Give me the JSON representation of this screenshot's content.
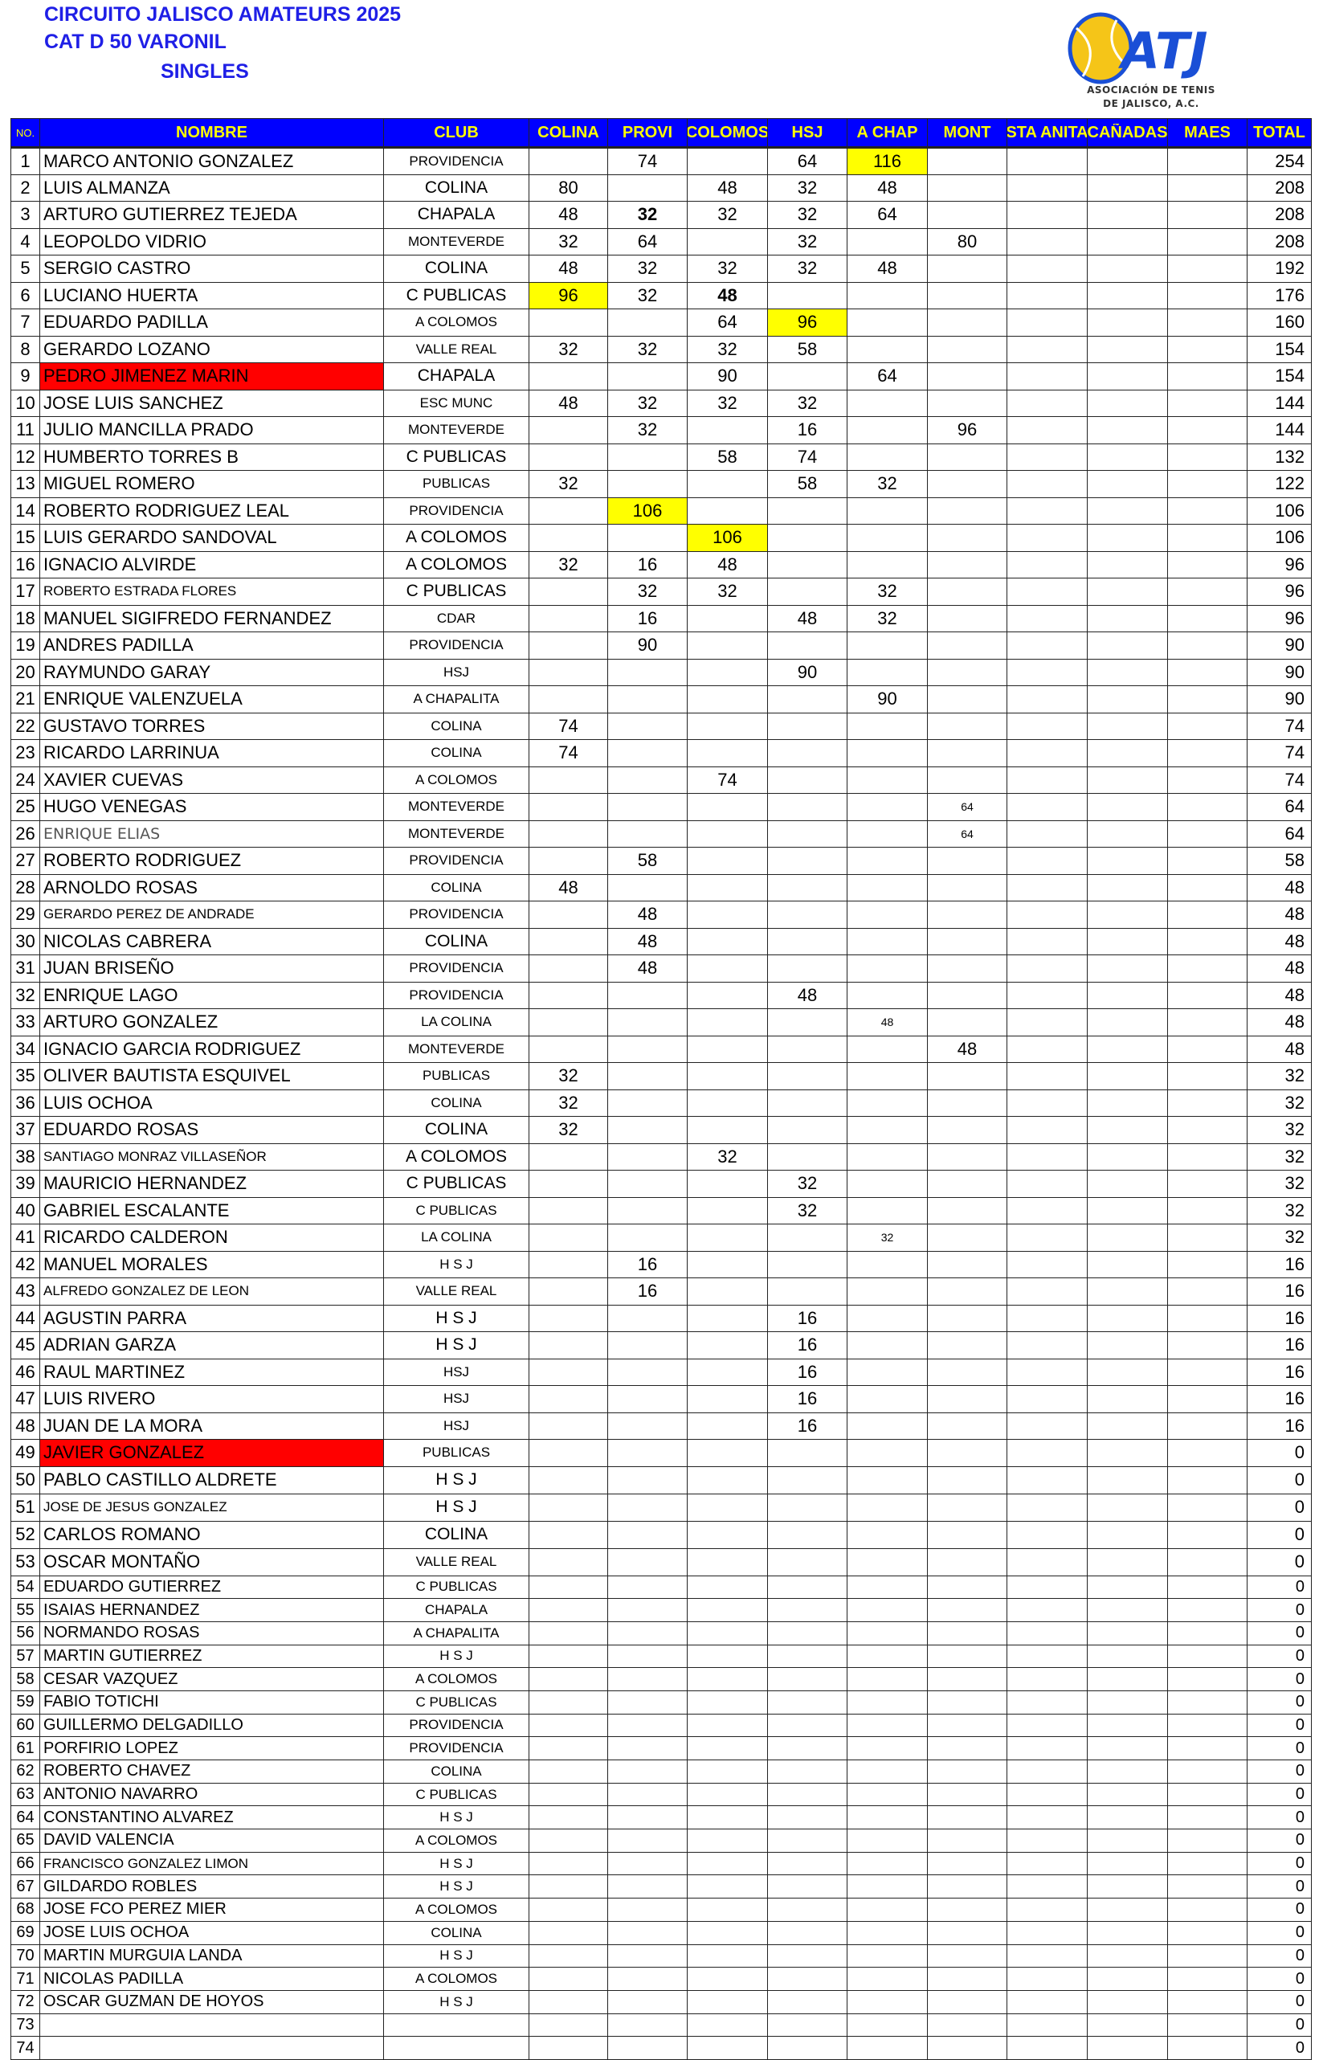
{
  "header": {
    "title_line1": "CIRCUITO JALISCO AMATEURS 2025",
    "title_line2": "CAT  D  50 VARONIL",
    "title_line3": "SINGLES"
  },
  "logo": {
    "text": "ATJ",
    "caption_line1": "ASOCIACIÓN DE TENIS",
    "caption_line2": "DE JALISCO, A.C.",
    "ball_color": "#f5c518",
    "brand_color": "#1a4fd6"
  },
  "colors": {
    "header_bg": "#0000ff",
    "header_text": "#ffff00",
    "highlight": "#ffff00",
    "flag": "#ff0000"
  },
  "columns": [
    "NO.",
    "NOMBRE",
    "CLUB",
    "COLINA",
    "PROVI",
    "COLOMOS",
    "HSJ",
    "A CHAP",
    "MONT",
    "STA ANITA",
    "CAÑADAS",
    "MAES",
    "TOTAL"
  ],
  "rows": [
    [
      "1",
      "MARCO ANTONIO GONZALEZ",
      "PROVIDENCIA",
      "",
      "74",
      "",
      "64",
      "116",
      "",
      "",
      "",
      "",
      "254"
    ],
    [
      "2",
      "LUIS ALMANZA",
      "COLINA",
      "80",
      "",
      "48",
      "32",
      "48",
      "",
      "",
      "",
      "",
      "208"
    ],
    [
      "3",
      "ARTURO GUTIERREZ TEJEDA",
      "CHAPALA",
      "48",
      "32",
      "32",
      "32",
      "64",
      "",
      "",
      "",
      "",
      "208"
    ],
    [
      "4",
      "LEOPOLDO VIDRIO",
      "MONTEVERDE",
      "32",
      "64",
      "",
      "32",
      "",
      "80",
      "",
      "",
      "",
      "208"
    ],
    [
      "5",
      "SERGIO CASTRO",
      "COLINA",
      "48",
      "32",
      "32",
      "32",
      "48",
      "",
      "",
      "",
      "",
      "192"
    ],
    [
      "6",
      "LUCIANO HUERTA",
      "C PUBLICAS",
      "96",
      "32",
      "48",
      "",
      "",
      "",
      "",
      "",
      "",
      "176"
    ],
    [
      "7",
      "EDUARDO PADILLA",
      "A COLOMOS",
      "",
      "",
      "64",
      "96",
      "",
      "",
      "",
      "",
      "",
      "160"
    ],
    [
      "8",
      "GERARDO LOZANO",
      "VALLE REAL",
      "32",
      "32",
      "32",
      "58",
      "",
      "",
      "",
      "",
      "",
      "154"
    ],
    [
      "9",
      "PEDRO JIMENEZ MARIN",
      "CHAPALA",
      "",
      "",
      "90",
      "",
      "64",
      "",
      "",
      "",
      "",
      "154"
    ],
    [
      "10",
      "JOSE LUIS SANCHEZ",
      "ESC MUNC",
      "48",
      "32",
      "32",
      "32",
      "",
      "",
      "",
      "",
      "",
      "144"
    ],
    [
      "11",
      "JULIO MANCILLA PRADO",
      "MONTEVERDE",
      "",
      "32",
      "",
      "16",
      "",
      "96",
      "",
      "",
      "",
      "144"
    ],
    [
      "12",
      "HUMBERTO TORRES B",
      "C PUBLICAS",
      "",
      "",
      "58",
      "74",
      "",
      "",
      "",
      "",
      "",
      "132"
    ],
    [
      "13",
      "MIGUEL ROMERO",
      "PUBLICAS",
      "32",
      "",
      "",
      "58",
      "32",
      "",
      "",
      "",
      "",
      "122"
    ],
    [
      "14",
      "ROBERTO RODRIGUEZ LEAL",
      "PROVIDENCIA",
      "",
      "106",
      "",
      "",
      "",
      "",
      "",
      "",
      "",
      "106"
    ],
    [
      "15",
      "LUIS GERARDO SANDOVAL",
      "A COLOMOS",
      "",
      "",
      "106",
      "",
      "",
      "",
      "",
      "",
      "",
      "106"
    ],
    [
      "16",
      "IGNACIO ALVIRDE",
      "A COLOMOS",
      "32",
      "16",
      "48",
      "",
      "",
      "",
      "",
      "",
      "",
      "96"
    ],
    [
      "17",
      "ROBERTO ESTRADA FLORES",
      "C PUBLICAS",
      "",
      "32",
      "32",
      "",
      "32",
      "",
      "",
      "",
      "",
      "96"
    ],
    [
      "18",
      "MANUEL SIGIFREDO FERNANDEZ",
      "CDAR",
      "",
      "16",
      "",
      "48",
      "32",
      "",
      "",
      "",
      "",
      "96"
    ],
    [
      "19",
      "ANDRES PADILLA",
      "PROVIDENCIA",
      "",
      "90",
      "",
      "",
      "",
      "",
      "",
      "",
      "",
      "90"
    ],
    [
      "20",
      "RAYMUNDO GARAY",
      "HSJ",
      "",
      "",
      "",
      "90",
      "",
      "",
      "",
      "",
      "",
      "90"
    ],
    [
      "21",
      "ENRIQUE  VALENZUELA",
      "A CHAPALITA",
      "",
      "",
      "",
      "",
      "90",
      "",
      "",
      "",
      "",
      "90"
    ],
    [
      "22",
      "GUSTAVO TORRES",
      "COLINA",
      "74",
      "",
      "",
      "",
      "",
      "",
      "",
      "",
      "",
      "74"
    ],
    [
      "23",
      "RICARDO LARRINUA",
      "COLINA",
      "74",
      "",
      "",
      "",
      "",
      "",
      "",
      "",
      "",
      "74"
    ],
    [
      "24",
      "XAVIER CUEVAS",
      "A COLOMOS",
      "",
      "",
      "74",
      "",
      "",
      "",
      "",
      "",
      "",
      "74"
    ],
    [
      "25",
      "HUGO VENEGAS",
      "MONTEVERDE",
      "",
      "",
      "",
      "",
      "",
      "64",
      "",
      "",
      "",
      "64"
    ],
    [
      "26",
      "ENRIQUE ELIAS",
      "MONTEVERDE",
      "",
      "",
      "",
      "",
      "",
      "64",
      "",
      "",
      "",
      "64"
    ],
    [
      "27",
      "ROBERTO RODRIGUEZ",
      "PROVIDENCIA",
      "",
      "58",
      "",
      "",
      "",
      "",
      "",
      "",
      "",
      "58"
    ],
    [
      "28",
      "ARNOLDO ROSAS",
      "COLINA",
      "48",
      "",
      "",
      "",
      "",
      "",
      "",
      "",
      "",
      "48"
    ],
    [
      "29",
      "GERARDO PEREZ DE ANDRADE",
      "PROVIDENCIA",
      "",
      "48",
      "",
      "",
      "",
      "",
      "",
      "",
      "",
      "48"
    ],
    [
      "30",
      "NICOLAS CABRERA",
      "COLINA",
      "",
      "48",
      "",
      "",
      "",
      "",
      "",
      "",
      "",
      "48"
    ],
    [
      "31",
      "JUAN BRISEÑO",
      "PROVIDENCIA",
      "",
      "48",
      "",
      "",
      "",
      "",
      "",
      "",
      "",
      "48"
    ],
    [
      "32",
      "ENRIQUE LAGO",
      "PROVIDENCIA",
      "",
      "",
      "",
      "48",
      "",
      "",
      "",
      "",
      "",
      "48"
    ],
    [
      "33",
      "ARTURO GONZALEZ",
      "LA COLINA",
      "",
      "",
      "",
      "",
      "48",
      "",
      "",
      "",
      "",
      "48"
    ],
    [
      "34",
      "IGNACIO GARCIA RODRIGUEZ",
      "MONTEVERDE",
      "",
      "",
      "",
      "",
      "",
      "48",
      "",
      "",
      "",
      "48"
    ],
    [
      "35",
      "OLIVER BAUTISTA ESQUIVEL",
      "PUBLICAS",
      "32",
      "",
      "",
      "",
      "",
      "",
      "",
      "",
      "",
      "32"
    ],
    [
      "36",
      "LUIS OCHOA",
      "COLINA",
      "32",
      "",
      "",
      "",
      "",
      "",
      "",
      "",
      "",
      "32"
    ],
    [
      "37",
      "EDUARDO ROSAS",
      "COLINA",
      "32",
      "",
      "",
      "",
      "",
      "",
      "",
      "",
      "",
      "32"
    ],
    [
      "38",
      "SANTIAGO MONRAZ VILLASEÑOR",
      "A COLOMOS",
      "",
      "",
      "32",
      "",
      "",
      "",
      "",
      "",
      "",
      "32"
    ],
    [
      "39",
      "MAURICIO HERNANDEZ",
      "C PUBLICAS",
      "",
      "",
      "",
      "32",
      "",
      "",
      "",
      "",
      "",
      "32"
    ],
    [
      "40",
      "GABRIEL ESCALANTE",
      "C PUBLICAS",
      "",
      "",
      "",
      "32",
      "",
      "",
      "",
      "",
      "",
      "32"
    ],
    [
      "41",
      "RICARDO CALDERON",
      "LA COLINA",
      "",
      "",
      "",
      "",
      "32",
      "",
      "",
      "",
      "",
      "32"
    ],
    [
      "42",
      "MANUEL MORALES",
      "H S J",
      "",
      "16",
      "",
      "",
      "",
      "",
      "",
      "",
      "",
      "16"
    ],
    [
      "43",
      "ALFREDO GONZALEZ DE LEON",
      "VALLE REAL",
      "",
      "16",
      "",
      "",
      "",
      "",
      "",
      "",
      "",
      "16"
    ],
    [
      "44",
      "AGUSTIN PARRA",
      "H S J",
      "",
      "",
      "",
      "16",
      "",
      "",
      "",
      "",
      "",
      "16"
    ],
    [
      "45",
      "ADRIAN GARZA",
      "H S J",
      "",
      "",
      "",
      "16",
      "",
      "",
      "",
      "",
      "",
      "16"
    ],
    [
      "46",
      "RAUL MARTINEZ",
      "HSJ",
      "",
      "",
      "",
      "16",
      "",
      "",
      "",
      "",
      "",
      "16"
    ],
    [
      "47",
      "LUIS RIVERO",
      "HSJ",
      "",
      "",
      "",
      "16",
      "",
      "",
      "",
      "",
      "",
      "16"
    ],
    [
      "48",
      "JUAN DE LA MORA",
      "HSJ",
      "",
      "",
      "",
      "16",
      "",
      "",
      "",
      "",
      "",
      "16"
    ],
    [
      "49",
      "JAVIER GONZALEZ",
      "PUBLICAS",
      "",
      "",
      "",
      "",
      "",
      "",
      "",
      "",
      "",
      "0"
    ],
    [
      "50",
      "PABLO CASTILLO ALDRETE",
      "H S J",
      "",
      "",
      "",
      "",
      "",
      "",
      "",
      "",
      "",
      "0"
    ],
    [
      "51",
      "JOSE DE JESUS GONZALEZ",
      "H S J",
      "",
      "",
      "",
      "",
      "",
      "",
      "",
      "",
      "",
      "0"
    ],
    [
      "52",
      "CARLOS ROMANO",
      "COLINA",
      "",
      "",
      "",
      "",
      "",
      "",
      "",
      "",
      "",
      "0"
    ],
    [
      "53",
      "OSCAR MONTAÑO",
      "VALLE REAL",
      "",
      "",
      "",
      "",
      "",
      "",
      "",
      "",
      "",
      "0"
    ],
    [
      "54",
      "EDUARDO GUTIERREZ",
      "C PUBLICAS",
      "",
      "",
      "",
      "",
      "",
      "",
      "",
      "",
      "",
      "0"
    ],
    [
      "55",
      "ISAIAS HERNANDEZ",
      "CHAPALA",
      "",
      "",
      "",
      "",
      "",
      "",
      "",
      "",
      "",
      "0"
    ],
    [
      "56",
      "NORMANDO ROSAS",
      "A CHAPALITA",
      "",
      "",
      "",
      "",
      "",
      "",
      "",
      "",
      "",
      "0"
    ],
    [
      "57",
      "MARTIN GUTIERREZ",
      "H S J",
      "",
      "",
      "",
      "",
      "",
      "",
      "",
      "",
      "",
      "0"
    ],
    [
      "58",
      "CESAR VAZQUEZ",
      "A COLOMOS",
      "",
      "",
      "",
      "",
      "",
      "",
      "",
      "",
      "",
      "0"
    ],
    [
      "59",
      "FABIO TOTICHI",
      "C PUBLICAS",
      "",
      "",
      "",
      "",
      "",
      "",
      "",
      "",
      "",
      "0"
    ],
    [
      "60",
      "GUILLERMO DELGADILLO",
      "PROVIDENCIA",
      "",
      "",
      "",
      "",
      "",
      "",
      "",
      "",
      "",
      "0"
    ],
    [
      "61",
      "PORFIRIO LOPEZ",
      "PROVIDENCIA",
      "",
      "",
      "",
      "",
      "",
      "",
      "",
      "",
      "",
      "0"
    ],
    [
      "62",
      "ROBERTO CHAVEZ",
      "COLINA",
      "",
      "",
      "",
      "",
      "",
      "",
      "",
      "",
      "",
      "0"
    ],
    [
      "63",
      "ANTONIO NAVARRO",
      "C PUBLICAS",
      "",
      "",
      "",
      "",
      "",
      "",
      "",
      "",
      "",
      "0"
    ],
    [
      "64",
      "CONSTANTINO ALVAREZ",
      "H S J",
      "",
      "",
      "",
      "",
      "",
      "",
      "",
      "",
      "",
      "0"
    ],
    [
      "65",
      "DAVID VALENCIA",
      "A COLOMOS",
      "",
      "",
      "",
      "",
      "",
      "",
      "",
      "",
      "",
      "0"
    ],
    [
      "66",
      "FRANCISCO GONZALEZ LIMON",
      "H S J",
      "",
      "",
      "",
      "",
      "",
      "",
      "",
      "",
      "",
      "0"
    ],
    [
      "67",
      "GILDARDO ROBLES",
      "H S J",
      "",
      "",
      "",
      "",
      "",
      "",
      "",
      "",
      "",
      "0"
    ],
    [
      "68",
      "JOSE FCO PEREZ MIER",
      "A COLOMOS",
      "",
      "",
      "",
      "",
      "",
      "",
      "",
      "",
      "",
      "0"
    ],
    [
      "69",
      "JOSE LUIS OCHOA",
      "COLINA",
      "",
      "",
      "",
      "",
      "",
      "",
      "",
      "",
      "",
      "0"
    ],
    [
      "70",
      "MARTIN MURGUIA LANDA",
      "H S J",
      "",
      "",
      "",
      "",
      "",
      "",
      "",
      "",
      "",
      "0"
    ],
    [
      "71",
      "NICOLAS PADILLA",
      "A COLOMOS",
      "",
      "",
      "",
      "",
      "",
      "",
      "",
      "",
      "",
      "0"
    ],
    [
      "72",
      "OSCAR GUZMAN DE HOYOS",
      "H S J",
      "",
      "",
      "",
      "",
      "",
      "",
      "",
      "",
      "",
      "0"
    ],
    [
      "73",
      "",
      "",
      "",
      "",
      "",
      "",
      "",
      "",
      "",
      "",
      "",
      "0"
    ],
    [
      "74",
      "",
      "",
      "",
      "",
      "",
      "",
      "",
      "",
      "",
      "",
      "",
      "0"
    ]
  ],
  "highlighted_scores": [
    {
      "no": "1",
      "column": "A CHAP"
    },
    {
      "no": "6",
      "column": "COLINA"
    },
    {
      "no": "7",
      "column": "HSJ"
    },
    {
      "no": "14",
      "column": "PROVI"
    },
    {
      "no": "15",
      "column": "COLOMOS"
    }
  ],
  "bold_scores": [
    {
      "no": "3",
      "column": "PROVI"
    },
    {
      "no": "6",
      "column": "COLOMOS"
    }
  ],
  "flagged_names": [
    "9",
    "49"
  ]
}
